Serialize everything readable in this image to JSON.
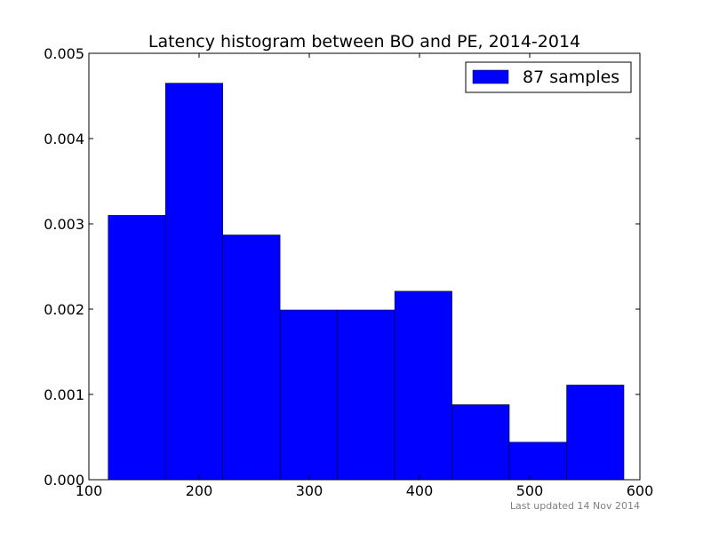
{
  "chart_data": {
    "type": "bar",
    "title": "Latency histogram between BO and PE, 2014-2014",
    "xlabel": "",
    "ylabel": "",
    "xlim": [
      100,
      600
    ],
    "ylim": [
      0,
      0.005
    ],
    "x_ticks": [
      100,
      200,
      300,
      400,
      500,
      600
    ],
    "y_ticks": [
      0.0,
      0.001,
      0.002,
      0.003,
      0.004,
      0.005
    ],
    "x_tick_labels": [
      "100",
      "200",
      "300",
      "400",
      "500",
      "600"
    ],
    "y_tick_labels": [
      "0.000",
      "0.001",
      "0.002",
      "0.003",
      "0.004",
      "0.005"
    ],
    "bin_edges": [
      117.5,
      169.5,
      221.5,
      273.5,
      325.5,
      377.5,
      429.5,
      481.5,
      533.5,
      585.5
    ],
    "series": [
      {
        "name": "87 samples",
        "values": [
          0.0031,
          0.00465,
          0.00287,
          0.00199,
          0.00199,
          0.00221,
          0.00088,
          0.00044,
          0.00111
        ]
      }
    ],
    "bar_color": "#0000ff",
    "grid": false,
    "legend_position": "top-right"
  },
  "footer": {
    "updated_text": "Last updated 14 Nov 2014"
  }
}
